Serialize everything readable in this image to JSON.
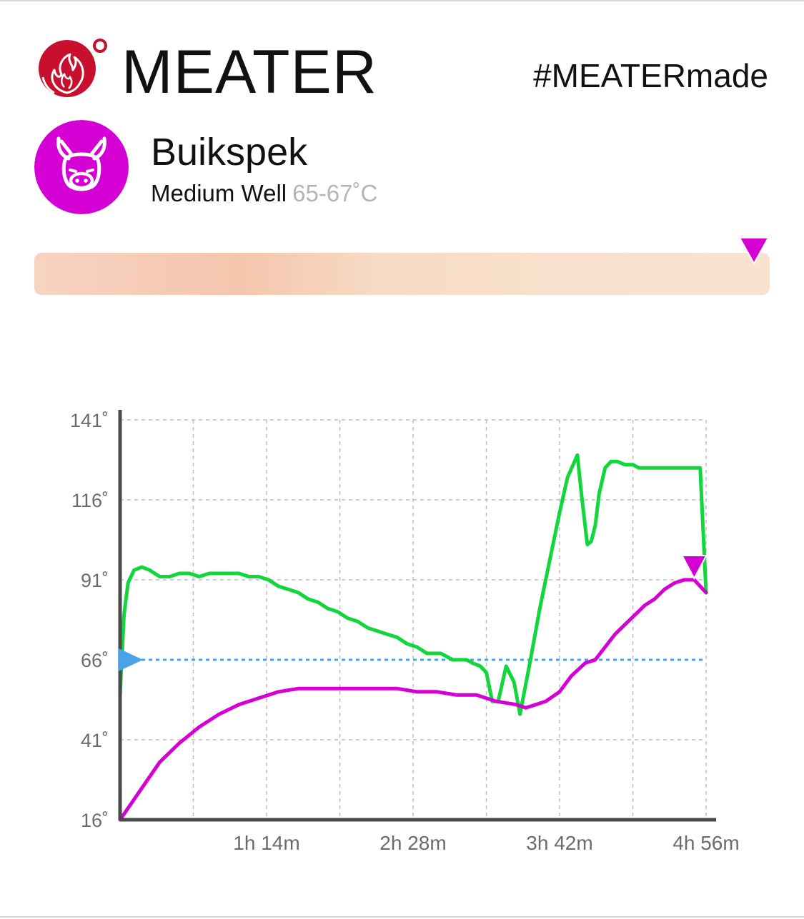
{
  "header": {
    "brand": "MEATER",
    "hashtag": "#MEATERmade"
  },
  "cook": {
    "meat_name": "Buikspek",
    "doneness": "Medium Well",
    "target_range": "65-67˚C",
    "avatar_icon": "pig-icon",
    "avatar_color": "#d400d4"
  },
  "progress": {
    "marker_color": "#d400d4"
  },
  "chart_data": {
    "type": "line",
    "y_ticks": [
      "141˚",
      "116˚",
      "91˚",
      "66˚",
      "41˚",
      "16˚"
    ],
    "y_tick_values": [
      141,
      116,
      91,
      66,
      41,
      16
    ],
    "x_ticks": [
      "1h 14m",
      "2h 28m",
      "3h 42m",
      "4h 56m"
    ],
    "x_tick_values": [
      74,
      148,
      222,
      296
    ],
    "xlim": [
      0,
      296
    ],
    "ylim": [
      16,
      141
    ],
    "grid": true,
    "target_temp": 66,
    "target_line_color": "#4aa3e8",
    "series": [
      {
        "color": "#11d63c",
        "points": [
          [
            0,
            55
          ],
          [
            2,
            80
          ],
          [
            4,
            90
          ],
          [
            7,
            94
          ],
          [
            11,
            95
          ],
          [
            15,
            94
          ],
          [
            20,
            92
          ],
          [
            25,
            92
          ],
          [
            30,
            93
          ],
          [
            35,
            93
          ],
          [
            40,
            92
          ],
          [
            45,
            93
          ],
          [
            50,
            93
          ],
          [
            55,
            93
          ],
          [
            60,
            93
          ],
          [
            65,
            92
          ],
          [
            70,
            92
          ],
          [
            75,
            91
          ],
          [
            80,
            89
          ],
          [
            85,
            88
          ],
          [
            90,
            87
          ],
          [
            95,
            85
          ],
          [
            100,
            84
          ],
          [
            105,
            82
          ],
          [
            110,
            81
          ],
          [
            115,
            79
          ],
          [
            120,
            78
          ],
          [
            125,
            76
          ],
          [
            130,
            75
          ],
          [
            135,
            74
          ],
          [
            140,
            73
          ],
          [
            145,
            71
          ],
          [
            150,
            70
          ],
          [
            155,
            68
          ],
          [
            158,
            68
          ],
          [
            162,
            68
          ],
          [
            165,
            67
          ],
          [
            168,
            66
          ],
          [
            171,
            66
          ],
          [
            175,
            66
          ],
          [
            178,
            65
          ],
          [
            182,
            64
          ],
          [
            185,
            62
          ],
          [
            188,
            53
          ],
          [
            191,
            53
          ],
          [
            195,
            64
          ],
          [
            199,
            59
          ],
          [
            202,
            49
          ],
          [
            207,
            65
          ],
          [
            212,
            82
          ],
          [
            217,
            97
          ],
          [
            222,
            112
          ],
          [
            226,
            123
          ],
          [
            231,
            130
          ],
          [
            233,
            118
          ],
          [
            236,
            102
          ],
          [
            238,
            103
          ],
          [
            240,
            108
          ],
          [
            242,
            118
          ],
          [
            245,
            126
          ],
          [
            248,
            128
          ],
          [
            251,
            128
          ],
          [
            255,
            127
          ],
          [
            259,
            127
          ],
          [
            262,
            126
          ],
          [
            266,
            126
          ],
          [
            270,
            126
          ],
          [
            274,
            126
          ],
          [
            277,
            126
          ],
          [
            280,
            126
          ],
          [
            282,
            126
          ],
          [
            286,
            126
          ],
          [
            290,
            126
          ],
          [
            293,
            126
          ],
          [
            296,
            87
          ]
        ]
      },
      {
        "color": "#d400d4",
        "points": [
          [
            0,
            16
          ],
          [
            10,
            25
          ],
          [
            20,
            34
          ],
          [
            30,
            40
          ],
          [
            40,
            45
          ],
          [
            50,
            49
          ],
          [
            60,
            52
          ],
          [
            70,
            54
          ],
          [
            80,
            56
          ],
          [
            90,
            57
          ],
          [
            100,
            57
          ],
          [
            110,
            57
          ],
          [
            120,
            57
          ],
          [
            130,
            57
          ],
          [
            140,
            57
          ],
          [
            150,
            56
          ],
          [
            160,
            56
          ],
          [
            170,
            55
          ],
          [
            180,
            55
          ],
          [
            190,
            53
          ],
          [
            200,
            52
          ],
          [
            205,
            51
          ],
          [
            210,
            52
          ],
          [
            215,
            53
          ],
          [
            222,
            56
          ],
          [
            228,
            61
          ],
          [
            235,
            65
          ],
          [
            240,
            66
          ],
          [
            245,
            70
          ],
          [
            250,
            74
          ],
          [
            255,
            77
          ],
          [
            260,
            80
          ],
          [
            265,
            83
          ],
          [
            270,
            85
          ],
          [
            275,
            88
          ],
          [
            280,
            90
          ],
          [
            285,
            91
          ],
          [
            290,
            91
          ],
          [
            293,
            89
          ],
          [
            296,
            87
          ]
        ]
      }
    ]
  }
}
